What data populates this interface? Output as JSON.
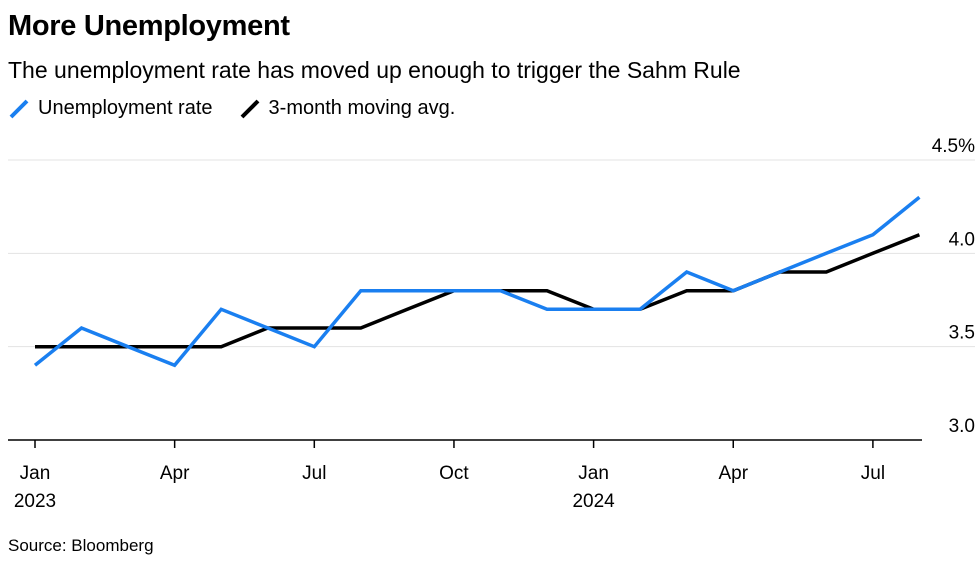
{
  "header": {
    "title": "More Unemployment",
    "subtitle": "The unemployment rate has moved up enough to trigger the Sahm Rule"
  },
  "legend": [
    {
      "label": "Unemployment rate",
      "color": "#1a7ff0"
    },
    {
      "label": "3-month moving avg.",
      "color": "#000000"
    }
  ],
  "footer": {
    "source": "Source: Bloomberg"
  },
  "chart_data": {
    "type": "line",
    "x_tick_labels": [
      {
        "month": 0,
        "label": "Jan",
        "year": "2023"
      },
      {
        "month": 3,
        "label": "Apr",
        "year": ""
      },
      {
        "month": 6,
        "label": "Jul",
        "year": ""
      },
      {
        "month": 9,
        "label": "Oct",
        "year": ""
      },
      {
        "month": 12,
        "label": "Jan",
        "year": "2024"
      },
      {
        "month": 15,
        "label": "Apr",
        "year": ""
      },
      {
        "month": 18,
        "label": "Jul",
        "year": ""
      }
    ],
    "x": [
      "2023-01",
      "2023-02",
      "2023-03",
      "2023-04",
      "2023-05",
      "2023-06",
      "2023-07",
      "2023-08",
      "2023-09",
      "2023-10",
      "2023-11",
      "2023-12",
      "2024-01",
      "2024-02",
      "2024-03",
      "2024-04",
      "2024-05",
      "2024-06",
      "2024-07",
      "2024-08"
    ],
    "series": [
      {
        "name": "Unemployment rate",
        "color": "#1a7ff0",
        "values": [
          3.4,
          3.6,
          3.5,
          3.4,
          3.7,
          3.6,
          3.5,
          3.8,
          3.8,
          3.8,
          3.8,
          3.7,
          3.7,
          3.7,
          3.9,
          3.8,
          3.9,
          4.0,
          4.1,
          4.3
        ]
      },
      {
        "name": "3-month moving avg.",
        "color": "#000000",
        "values": [
          3.5,
          3.5,
          3.5,
          3.5,
          3.5,
          3.6,
          3.6,
          3.6,
          3.7,
          3.8,
          3.8,
          3.8,
          3.7,
          3.7,
          3.8,
          3.8,
          3.9,
          3.9,
          4.0,
          4.1
        ]
      }
    ],
    "y_ticks": [
      {
        "value": 4.5,
        "label": "4.5%"
      },
      {
        "value": 4.0,
        "label": "4.0"
      },
      {
        "value": 3.5,
        "label": "3.5"
      },
      {
        "value": 3.0,
        "label": "3.0"
      }
    ],
    "ylim": [
      3.0,
      4.5
    ],
    "xlim_months": [
      0,
      19.5
    ],
    "y_axis_side": "right",
    "grid": true
  }
}
